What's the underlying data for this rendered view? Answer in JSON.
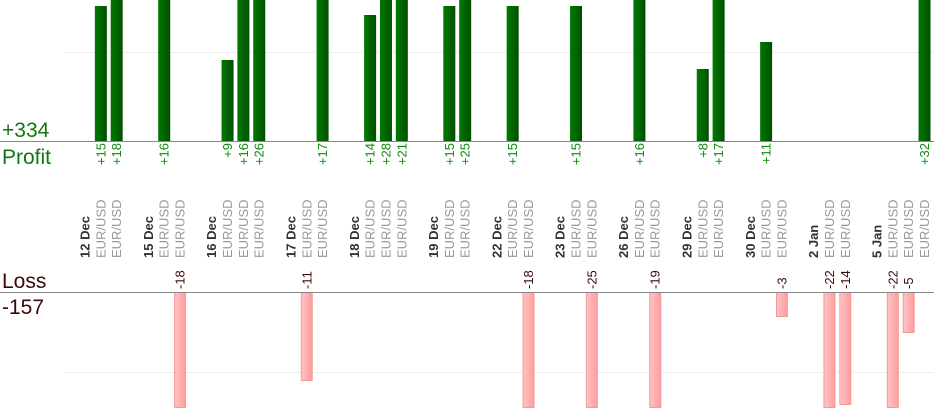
{
  "chart_data": {
    "type": "bar",
    "title": "",
    "colors": {
      "profit": "#006600",
      "loss": "#ffb0b0",
      "profit_text": "#118811",
      "loss_text": "#3a0a0a"
    },
    "summary": {
      "profit_total": "+334",
      "profit_label": "Profit",
      "loss_label": "Loss",
      "loss_total": "-157"
    },
    "profit_axis_max": 15,
    "loss_axis_max": 14.5,
    "gridline_value": 10,
    "groups": [
      {
        "date": "12 Dec",
        "trades": [
          {
            "symbol": "EUR/USD",
            "value": 15
          },
          {
            "symbol": "EUR/USD",
            "value": 18
          }
        ]
      },
      {
        "date": "15 Dec",
        "trades": [
          {
            "symbol": "EUR/USD",
            "value": 16
          },
          {
            "symbol": "EUR/USD",
            "value": -18
          }
        ]
      },
      {
        "date": "16 Dec",
        "trades": [
          {
            "symbol": "EUR/USD",
            "value": 9
          },
          {
            "symbol": "EUR/USD",
            "value": 16
          },
          {
            "symbol": "EUR/USD",
            "value": 26
          }
        ]
      },
      {
        "date": "17 Dec",
        "trades": [
          {
            "symbol": "EUR/USD",
            "value": -11
          },
          {
            "symbol": "EUR/USD",
            "value": 17
          }
        ]
      },
      {
        "date": "18 Dec",
        "trades": [
          {
            "symbol": "EUR/USD",
            "value": 14
          },
          {
            "symbol": "EUR/USD",
            "value": 28
          },
          {
            "symbol": "EUR/USD",
            "value": 21
          }
        ]
      },
      {
        "date": "19 Dec",
        "trades": [
          {
            "symbol": "EUR/USD",
            "value": 15
          },
          {
            "symbol": "EUR/USD",
            "value": 25
          }
        ]
      },
      {
        "date": "22 Dec",
        "trades": [
          {
            "symbol": "EUR/USD",
            "value": 15
          },
          {
            "symbol": "EUR/USD",
            "value": -18
          }
        ]
      },
      {
        "date": "23 Dec",
        "trades": [
          {
            "symbol": "EUR/USD",
            "value": 15
          },
          {
            "symbol": "EUR/USD",
            "value": -25
          }
        ]
      },
      {
        "date": "26 Dec",
        "trades": [
          {
            "symbol": "EUR/USD",
            "value": 16
          },
          {
            "symbol": "EUR/USD",
            "value": -19
          }
        ]
      },
      {
        "date": "29 Dec",
        "trades": [
          {
            "symbol": "EUR/USD",
            "value": 8
          },
          {
            "symbol": "EUR/USD",
            "value": 17
          }
        ]
      },
      {
        "date": "30 Dec",
        "trades": [
          {
            "symbol": "EUR/USD",
            "value": 11
          },
          {
            "symbol": "EUR/USD",
            "value": -3
          }
        ]
      },
      {
        "date": "2 Jan",
        "trades": [
          {
            "symbol": "EUR/USD",
            "value": -22
          },
          {
            "symbol": "EUR/USD",
            "value": -14
          }
        ]
      },
      {
        "date": "5 Jan",
        "trades": [
          {
            "symbol": "EUR/USD",
            "value": -22
          },
          {
            "symbol": "EUR/USD",
            "value": -5
          },
          {
            "symbol": "EUR/USD",
            "value": 32
          }
        ]
      }
    ]
  }
}
